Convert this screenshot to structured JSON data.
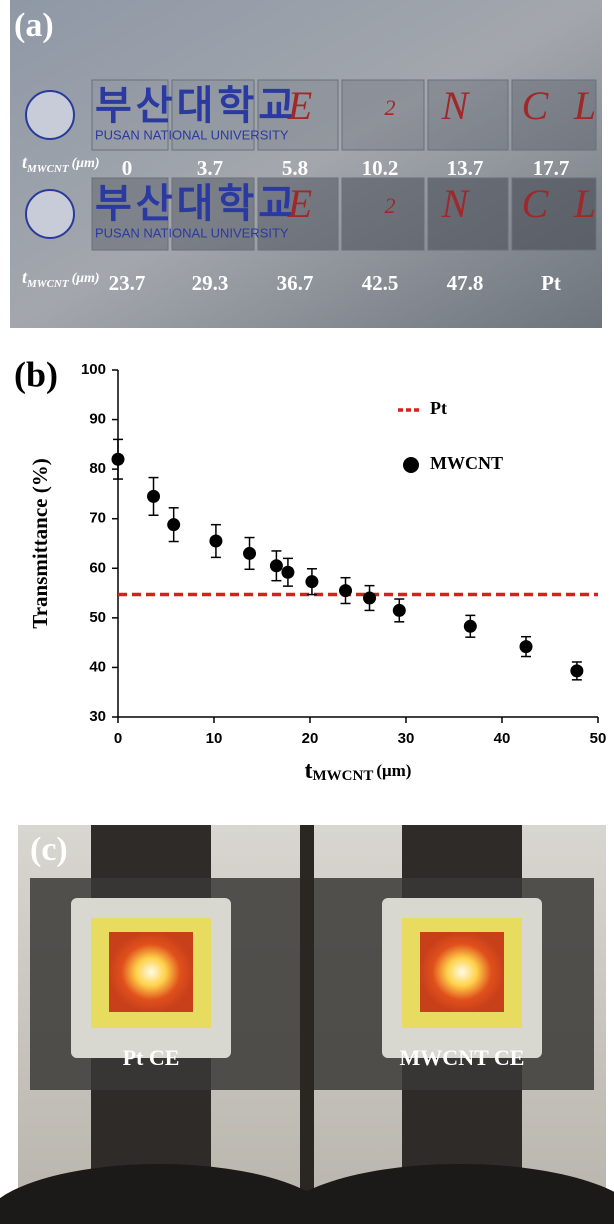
{
  "panel_a": {
    "label": "(a)",
    "logo_korean": "부산대학교",
    "logo_english": "PUSAN NATIONAL UNIVERSITY",
    "letters": [
      "E",
      "2",
      "N",
      "C",
      "L"
    ],
    "axis_label": {
      "t": "t",
      "sub": "MWCNT",
      "unit": "(μm)"
    },
    "rows": [
      [
        0,
        3.7,
        5.8,
        10.2,
        13.7,
        17.7
      ],
      [
        23.7,
        29.3,
        36.7,
        42.5,
        47.8,
        "Pt"
      ]
    ]
  },
  "chart_data": {
    "type": "scatter",
    "label": "(b)",
    "xlabel": {
      "t": "t",
      "sub": "MWCNT",
      "unit": "(μm)"
    },
    "ylabel": "Transmittance (%)",
    "xlim": [
      0,
      50
    ],
    "xticks": [
      0,
      10,
      20,
      30,
      40,
      50
    ],
    "ylim": [
      30,
      100
    ],
    "yticks": [
      30,
      40,
      50,
      60,
      70,
      80,
      90,
      100
    ],
    "series": [
      {
        "name": "MWCNT",
        "color": "#000000",
        "x": [
          0,
          3.7,
          5.8,
          10.2,
          13.7,
          16.5,
          17.7,
          20.2,
          23.7,
          26.2,
          29.3,
          36.7,
          42.5,
          47.8
        ],
        "values": [
          82,
          74.5,
          68.8,
          65.5,
          63,
          60.5,
          59.2,
          57.3,
          55.5,
          54,
          51.5,
          48.3,
          44.2,
          39.3
        ],
        "errors": [
          4,
          3.8,
          3.4,
          3.3,
          3.2,
          3,
          2.8,
          2.6,
          2.6,
          2.5,
          2.3,
          2.2,
          2,
          1.8
        ]
      }
    ],
    "reference_lines": [
      {
        "name": "Pt",
        "value": 54.7,
        "color": "#d42020",
        "style": "dashed"
      }
    ]
  },
  "panel_c": {
    "label": "(c)",
    "captions": [
      "Pt CE",
      "MWCNT CE"
    ]
  }
}
